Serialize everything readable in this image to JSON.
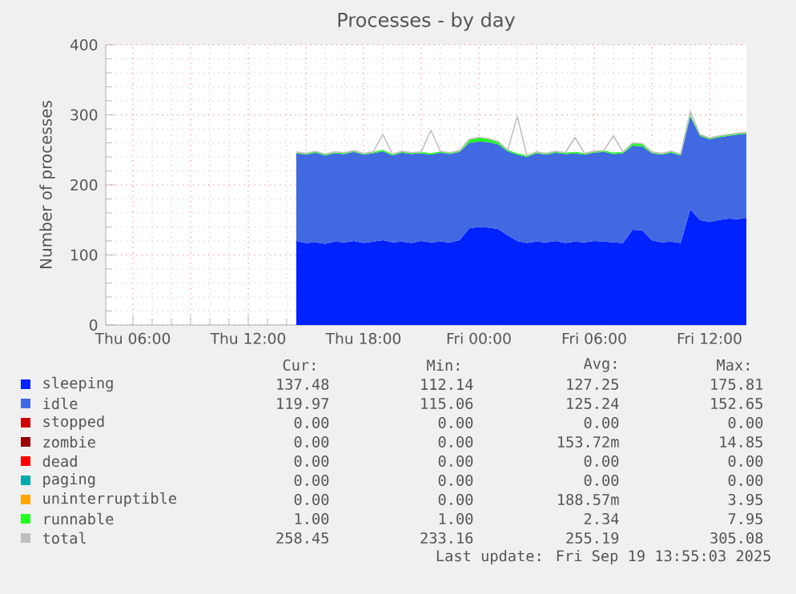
{
  "chart_data": {
    "type": "area",
    "stacked": true,
    "title": "Processes - by day",
    "ylabel": "Number of processes",
    "grid": true,
    "legend": "bottom",
    "x": [
      "2025-09-18T14:30",
      "2025-09-18T15:00",
      "2025-09-18T15:30",
      "2025-09-18T16:00",
      "2025-09-18T16:30",
      "2025-09-18T17:00",
      "2025-09-18T17:30",
      "2025-09-18T18:00",
      "2025-09-18T18:30",
      "2025-09-18T19:00",
      "2025-09-18T19:30",
      "2025-09-18T20:00",
      "2025-09-18T20:30",
      "2025-09-18T21:00",
      "2025-09-18T21:30",
      "2025-09-18T22:00",
      "2025-09-18T22:30",
      "2025-09-18T23:00",
      "2025-09-18T23:30",
      "2025-09-19T00:00",
      "2025-09-19T00:30",
      "2025-09-19T01:00",
      "2025-09-19T01:30",
      "2025-09-19T02:00",
      "2025-09-19T02:30",
      "2025-09-19T03:00",
      "2025-09-19T03:30",
      "2025-09-19T04:00",
      "2025-09-19T04:30",
      "2025-09-19T05:00",
      "2025-09-19T05:30",
      "2025-09-19T06:00",
      "2025-09-19T06:30",
      "2025-09-19T07:00",
      "2025-09-19T07:30",
      "2025-09-19T08:00",
      "2025-09-19T08:30",
      "2025-09-19T09:00",
      "2025-09-19T09:30",
      "2025-09-19T10:00",
      "2025-09-19T10:30",
      "2025-09-19T11:00",
      "2025-09-19T11:30",
      "2025-09-19T12:00",
      "2025-09-19T12:30",
      "2025-09-19T13:00",
      "2025-09-19T13:30",
      "2025-09-19T13:55"
    ],
    "xlim": [
      "2025-09-18T04:35",
      "2025-09-19T13:55"
    ],
    "xticks": [
      {
        "value": "2025-09-18T06:00",
        "label": "Thu 06:00"
      },
      {
        "value": "2025-09-18T09:00",
        "label": null
      },
      {
        "value": "2025-09-18T12:00",
        "label": "Thu 12:00"
      },
      {
        "value": "2025-09-18T15:00",
        "label": null
      },
      {
        "value": "2025-09-18T18:00",
        "label": "Thu 18:00"
      },
      {
        "value": "2025-09-18T21:00",
        "label": null
      },
      {
        "value": "2025-09-19T00:00",
        "label": "Fri 00:00"
      },
      {
        "value": "2025-09-19T03:00",
        "label": null
      },
      {
        "value": "2025-09-19T06:00",
        "label": "Fri 06:00"
      },
      {
        "value": "2025-09-19T09:00",
        "label": null
      },
      {
        "value": "2025-09-19T12:00",
        "label": "Fri 12:00"
      }
    ],
    "ylim": [
      0,
      400
    ],
    "yticks": [
      0,
      100,
      200,
      300,
      400
    ],
    "series": [
      {
        "name": "sleeping",
        "color": "#0022ff",
        "values": [
          120,
          117,
          118,
          116,
          119,
          118,
          120,
          117,
          119,
          121,
          118,
          119,
          117,
          120,
          118,
          119,
          118,
          121,
          138,
          140,
          139,
          137,
          128,
          120,
          117,
          119,
          118,
          120,
          117,
          119,
          118,
          120,
          119,
          118,
          117,
          136,
          135,
          121,
          118,
          119,
          117,
          165,
          150,
          147,
          150,
          152,
          151,
          153
        ]
      },
      {
        "name": "idle",
        "color": "#4169e1",
        "values": [
          125,
          126,
          128,
          126,
          126,
          126,
          127,
          126,
          126,
          127,
          124,
          127,
          127,
          125,
          125,
          127,
          126,
          126,
          122,
          122,
          122,
          121,
          120,
          123,
          123,
          126,
          125,
          126,
          127,
          126,
          125,
          126,
          128,
          126,
          128,
          120,
          120,
          124,
          125,
          127,
          125,
          133,
          120,
          118,
          118,
          118,
          121,
          120
        ]
      },
      {
        "name": "stopped",
        "color": "#cc0000",
        "values": [
          null,
          null,
          null,
          null,
          null,
          null,
          null,
          null,
          null,
          null,
          null,
          null,
          null,
          null,
          null,
          null,
          null,
          null,
          null,
          null,
          null,
          null,
          null,
          null,
          null,
          null,
          null,
          null,
          null,
          null,
          null,
          null,
          null,
          null,
          null,
          null,
          null,
          null,
          null,
          null,
          null,
          null,
          null,
          null,
          null,
          null,
          null,
          null
        ]
      },
      {
        "name": "zombie",
        "color": "#990000",
        "values": [
          null,
          null,
          null,
          null,
          null,
          null,
          null,
          null,
          null,
          null,
          null,
          null,
          null,
          null,
          null,
          null,
          null,
          null,
          null,
          null,
          null,
          null,
          null,
          null,
          null,
          null,
          null,
          null,
          null,
          null,
          null,
          null,
          null,
          null,
          null,
          null,
          null,
          null,
          null,
          null,
          null,
          null,
          null,
          null,
          null,
          null,
          null,
          null
        ]
      },
      {
        "name": "dead",
        "color": "#ff0000",
        "values": [
          null,
          null,
          null,
          null,
          null,
          null,
          null,
          null,
          null,
          null,
          null,
          null,
          null,
          null,
          null,
          null,
          null,
          null,
          null,
          null,
          null,
          null,
          null,
          null,
          null,
          null,
          null,
          null,
          null,
          null,
          null,
          null,
          null,
          null,
          null,
          null,
          null,
          null,
          null,
          null,
          null,
          null,
          null,
          null,
          null,
          null,
          null,
          null
        ]
      },
      {
        "name": "paging",
        "color": "#00aaaa",
        "values": [
          null,
          null,
          null,
          null,
          null,
          null,
          null,
          null,
          null,
          null,
          null,
          null,
          null,
          null,
          null,
          null,
          null,
          null,
          null,
          null,
          null,
          null,
          null,
          null,
          null,
          null,
          null,
          null,
          null,
          null,
          null,
          null,
          null,
          null,
          null,
          null,
          null,
          null,
          null,
          null,
          null,
          null,
          null,
          null,
          null,
          null,
          null,
          null
        ]
      },
      {
        "name": "uninterruptible",
        "color": "#ffa500",
        "values": [
          null,
          null,
          null,
          null,
          null,
          null,
          null,
          null,
          null,
          null,
          null,
          null,
          null,
          null,
          null,
          null,
          null,
          null,
          null,
          null,
          null,
          null,
          null,
          null,
          null,
          null,
          null,
          null,
          null,
          null,
          null,
          null,
          null,
          null,
          null,
          null,
          null,
          null,
          null,
          null,
          null,
          null,
          null,
          null,
          null,
          null,
          null,
          null
        ]
      },
      {
        "name": "runnable",
        "color": "#22ff22",
        "values": [
          2,
          2,
          2,
          2,
          2,
          2,
          2,
          2,
          2,
          2,
          2,
          2,
          2,
          2,
          2,
          2,
          2,
          2,
          5,
          6,
          5,
          4,
          2,
          2,
          2,
          2,
          2,
          2,
          2,
          2,
          2,
          2,
          2,
          2,
          2,
          4,
          4,
          2,
          2,
          2,
          2,
          2,
          2,
          2,
          2,
          2,
          2,
          2
        ]
      },
      {
        "name": "total",
        "color": "#c0c0c0",
        "type": "line",
        "values": [
          247,
          245,
          248,
          244,
          247,
          246,
          249,
          245,
          247,
          272,
          244,
          248,
          246,
          247,
          278,
          248,
          246,
          249,
          265,
          268,
          266,
          262,
          250,
          298,
          242,
          247,
          245,
          248,
          246,
          268,
          245,
          248,
          249,
          270,
          247,
          260,
          259,
          247,
          245,
          248,
          244,
          305,
          272,
          267,
          270,
          272,
          274,
          275
        ]
      }
    ],
    "annotations": [
      "Cur:",
      "Min:",
      "Avg:",
      "Max:",
      "137.48",
      "112.14",
      "127.25",
      "175.81",
      "119.97",
      "115.06",
      "125.24",
      "152.65",
      "0.00",
      "0.00",
      "0.00",
      "0.00",
      "0.00",
      "0.00",
      "153.72m",
      "14.85",
      "0.00",
      "0.00",
      "0.00",
      "0.00",
      "0.00",
      "0.00",
      "0.00",
      "0.00",
      "0.00",
      "0.00",
      "188.57m",
      "3.95",
      "1.00",
      "1.00",
      "2.34",
      "7.95",
      "258.45",
      "233.16",
      "255.19",
      "305.08",
      "Last update: Fri Sep 19 13:55:03 2025"
    ]
  }
}
